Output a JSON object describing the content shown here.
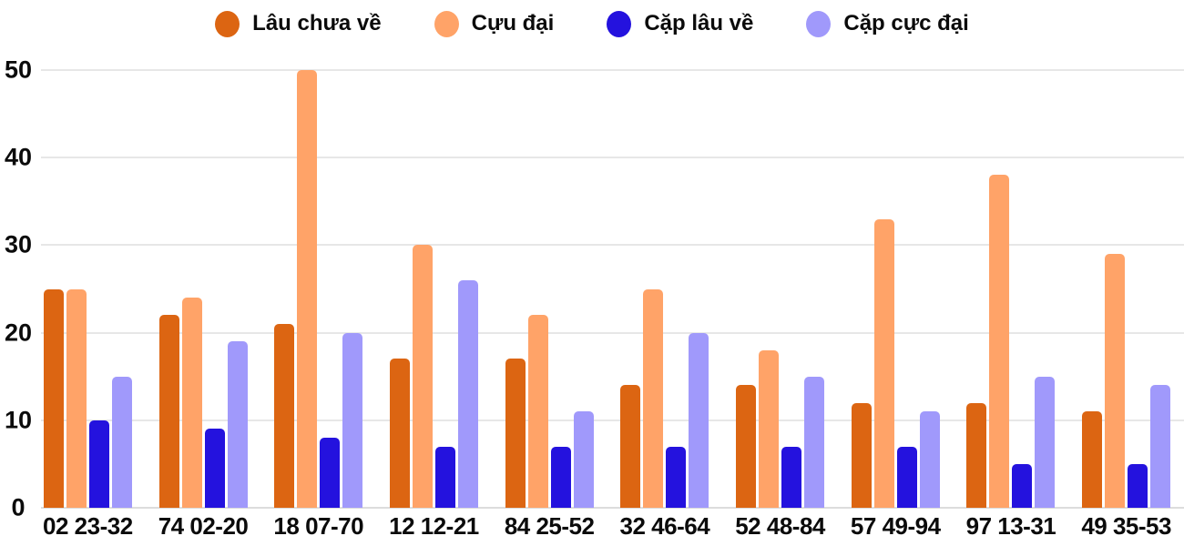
{
  "chart_data": {
    "type": "bar",
    "title": "",
    "xlabel": "",
    "ylabel": "",
    "categories": [
      "02 23-32",
      "74 02-20",
      "18 07-70",
      "12 12-21",
      "84 25-52",
      "32 46-64",
      "52 48-84",
      "57 49-94",
      "97 13-31",
      "49 35-53"
    ],
    "series": [
      {
        "name": "Lâu chưa về",
        "color": "#dc6512",
        "values": [
          25,
          22,
          21,
          17,
          17,
          14,
          14,
          12,
          12,
          11
        ]
      },
      {
        "name": "Cựu đại",
        "color": "#ffa368",
        "values": [
          25,
          24,
          50,
          30,
          22,
          25,
          18,
          33,
          38,
          29
        ]
      },
      {
        "name": "Cặp lâu về",
        "color": "#2412de",
        "values": [
          10,
          9,
          8,
          7,
          7,
          7,
          7,
          7,
          5,
          5
        ]
      },
      {
        "name": "Cặp cực đại",
        "color": "#a099fb",
        "values": [
          15,
          19,
          20,
          26,
          11,
          20,
          15,
          11,
          15,
          14
        ]
      }
    ],
    "ylim": [
      0,
      50
    ],
    "yticks": [
      0,
      10,
      20,
      30,
      40,
      50
    ],
    "grid": true,
    "legend_position": "top",
    "colors": {
      "background": "#ffffff",
      "gridline": "#e7e7e7",
      "text": "#0b0b0b"
    }
  }
}
